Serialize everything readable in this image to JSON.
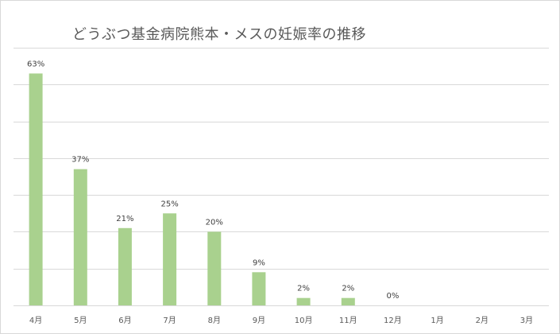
{
  "chart_data": {
    "type": "bar",
    "title": "どうぶつ基金病院熊本・メスの妊娠率の推移",
    "categories": [
      "4月",
      "5月",
      "6月",
      "7月",
      "8月",
      "9月",
      "10月",
      "11月",
      "12月",
      "1月",
      "2月",
      "3月"
    ],
    "values": [
      63,
      37,
      21,
      25,
      20,
      9,
      2,
      2,
      0,
      null,
      null,
      null
    ],
    "data_labels": [
      "63%",
      "37%",
      "21%",
      "25%",
      "20%",
      "9%",
      "2%",
      "2%",
      "0%",
      "",
      "",
      ""
    ],
    "ylim": [
      0,
      70
    ],
    "grid": true,
    "legend": "none",
    "bar_color": "#a9d18e",
    "xlabel": "",
    "ylabel": ""
  }
}
